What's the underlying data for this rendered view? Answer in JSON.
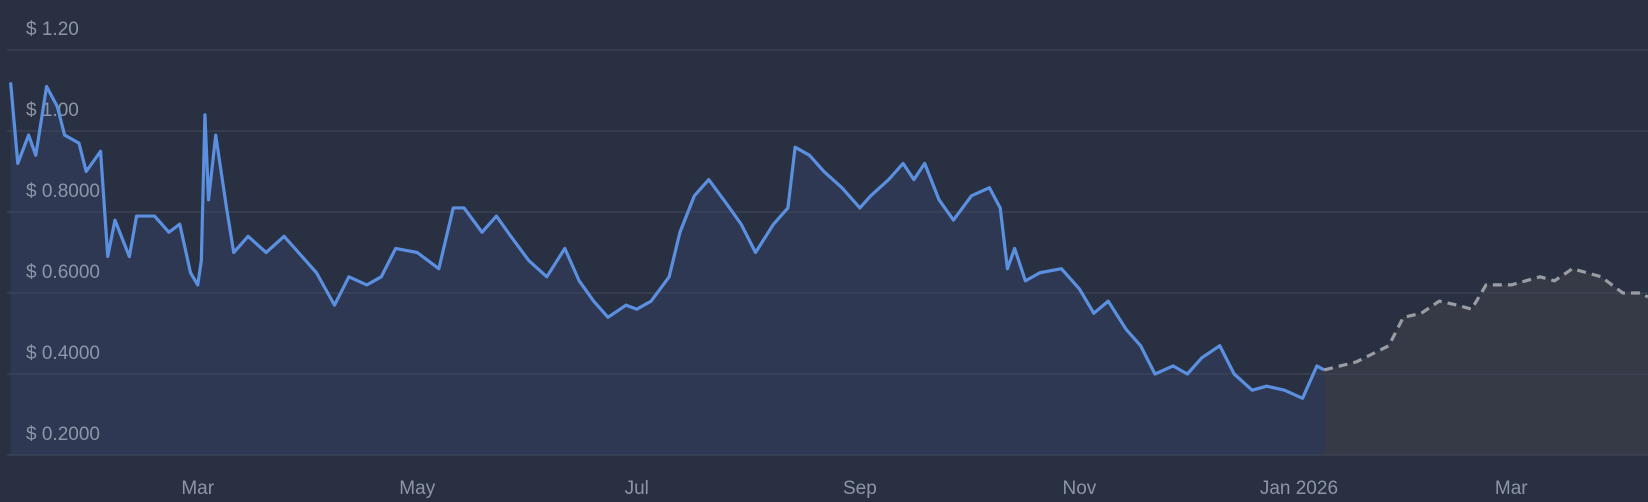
{
  "chart_data": {
    "type": "line",
    "ylim": [
      0.2,
      1.2
    ],
    "yticks": [
      {
        "value": 0.2,
        "label": "$ 0.2000"
      },
      {
        "value": 0.4,
        "label": "$ 0.4000"
      },
      {
        "value": 0.6,
        "label": "$ 0.6000"
      },
      {
        "value": 0.8,
        "label": "$ 0.8000"
      },
      {
        "value": 1.0,
        "label": "$ 1.00"
      },
      {
        "value": 1.2,
        "label": "$ 1.20"
      }
    ],
    "xlim": [
      "2025-01-07",
      "2026-04-08"
    ],
    "xticks": [
      {
        "value": "2025-03-01",
        "label": "Mar"
      },
      {
        "value": "2025-05-01",
        "label": "May"
      },
      {
        "value": "2025-07-01",
        "label": "Jul"
      },
      {
        "value": "2025-09-01",
        "label": "Sep"
      },
      {
        "value": "2025-11-01",
        "label": "Nov"
      },
      {
        "value": "2026-01-01",
        "label": "Jan 2026"
      },
      {
        "value": "2026-03-01",
        "label": "Mar"
      }
    ],
    "grid": true,
    "series": [
      {
        "color": "#5b8fe0",
        "fill": "#2e3853",
        "line_style": "solid",
        "x": [
          "2025-01-08",
          "2025-01-10",
          "2025-01-13",
          "2025-01-15",
          "2025-01-18",
          "2025-01-21",
          "2025-01-23",
          "2025-01-27",
          "2025-01-29",
          "2025-02-02",
          "2025-02-04",
          "2025-02-06",
          "2025-02-10",
          "2025-02-12",
          "2025-02-17",
          "2025-02-21",
          "2025-02-24",
          "2025-02-27",
          "2025-03-01",
          "2025-03-02",
          "2025-03-03",
          "2025-03-04",
          "2025-03-06",
          "2025-03-09",
          "2025-03-11",
          "2025-03-15",
          "2025-03-20",
          "2025-03-25",
          "2025-03-30",
          "2025-04-03",
          "2025-04-08",
          "2025-04-12",
          "2025-04-17",
          "2025-04-21",
          "2025-04-25",
          "2025-05-01",
          "2025-05-07",
          "2025-05-11",
          "2025-05-14",
          "2025-05-19",
          "2025-05-23",
          "2025-05-27",
          "2025-06-01",
          "2025-06-06",
          "2025-06-11",
          "2025-06-15",
          "2025-06-19",
          "2025-06-23",
          "2025-06-28",
          "2025-07-01",
          "2025-07-05",
          "2025-07-10",
          "2025-07-13",
          "2025-07-17",
          "2025-07-21",
          "2025-07-26",
          "2025-07-30",
          "2025-08-03",
          "2025-08-08",
          "2025-08-12",
          "2025-08-14",
          "2025-08-18",
          "2025-08-22",
          "2025-08-27",
          "2025-09-01",
          "2025-09-04",
          "2025-09-09",
          "2025-09-13",
          "2025-09-16",
          "2025-09-19",
          "2025-09-23",
          "2025-09-27",
          "2025-10-02",
          "2025-10-07",
          "2025-10-10",
          "2025-10-12",
          "2025-10-14",
          "2025-10-17",
          "2025-10-21",
          "2025-10-27",
          "2025-11-01",
          "2025-11-05",
          "2025-11-09",
          "2025-11-14",
          "2025-11-18",
          "2025-11-22",
          "2025-11-27",
          "2025-12-01",
          "2025-12-05",
          "2025-12-10",
          "2025-12-14",
          "2025-12-19",
          "2025-12-23",
          "2025-12-28",
          "2026-01-02",
          "2026-01-06",
          "2026-01-08"
        ],
        "values": [
          1.12,
          0.92,
          0.99,
          0.94,
          1.11,
          1.06,
          0.99,
          0.97,
          0.9,
          0.95,
          0.69,
          0.78,
          0.69,
          0.79,
          0.79,
          0.75,
          0.77,
          0.65,
          0.62,
          0.68,
          1.04,
          0.83,
          0.99,
          0.81,
          0.7,
          0.74,
          0.7,
          0.74,
          0.69,
          0.65,
          0.57,
          0.64,
          0.62,
          0.64,
          0.71,
          0.7,
          0.66,
          0.81,
          0.81,
          0.75,
          0.79,
          0.74,
          0.68,
          0.64,
          0.71,
          0.63,
          0.58,
          0.54,
          0.57,
          0.56,
          0.58,
          0.64,
          0.75,
          0.84,
          0.88,
          0.82,
          0.77,
          0.7,
          0.77,
          0.81,
          0.96,
          0.94,
          0.9,
          0.86,
          0.81,
          0.84,
          0.88,
          0.92,
          0.88,
          0.92,
          0.83,
          0.78,
          0.84,
          0.86,
          0.81,
          0.66,
          0.71,
          0.63,
          0.65,
          0.66,
          0.61,
          0.55,
          0.58,
          0.51,
          0.47,
          0.4,
          0.42,
          0.4,
          0.44,
          0.47,
          0.4,
          0.36,
          0.37,
          0.36,
          0.34,
          0.42,
          0.41
        ]
      },
      {
        "color": "#9a9ca3",
        "fill": "#353a46",
        "line_style": "dashed",
        "x": [
          "2026-01-08",
          "2026-01-17",
          "2026-01-26",
          "2026-01-30",
          "2026-02-04",
          "2026-02-09",
          "2026-02-14",
          "2026-02-18",
          "2026-02-22",
          "2026-03-01",
          "2026-03-09",
          "2026-03-13",
          "2026-03-18",
          "2026-03-26",
          "2026-04-01",
          "2026-04-06",
          "2026-04-08"
        ],
        "values": [
          0.41,
          0.43,
          0.47,
          0.54,
          0.55,
          0.58,
          0.57,
          0.56,
          0.62,
          0.62,
          0.64,
          0.63,
          0.66,
          0.64,
          0.6,
          0.6,
          0.59
        ]
      }
    ]
  }
}
